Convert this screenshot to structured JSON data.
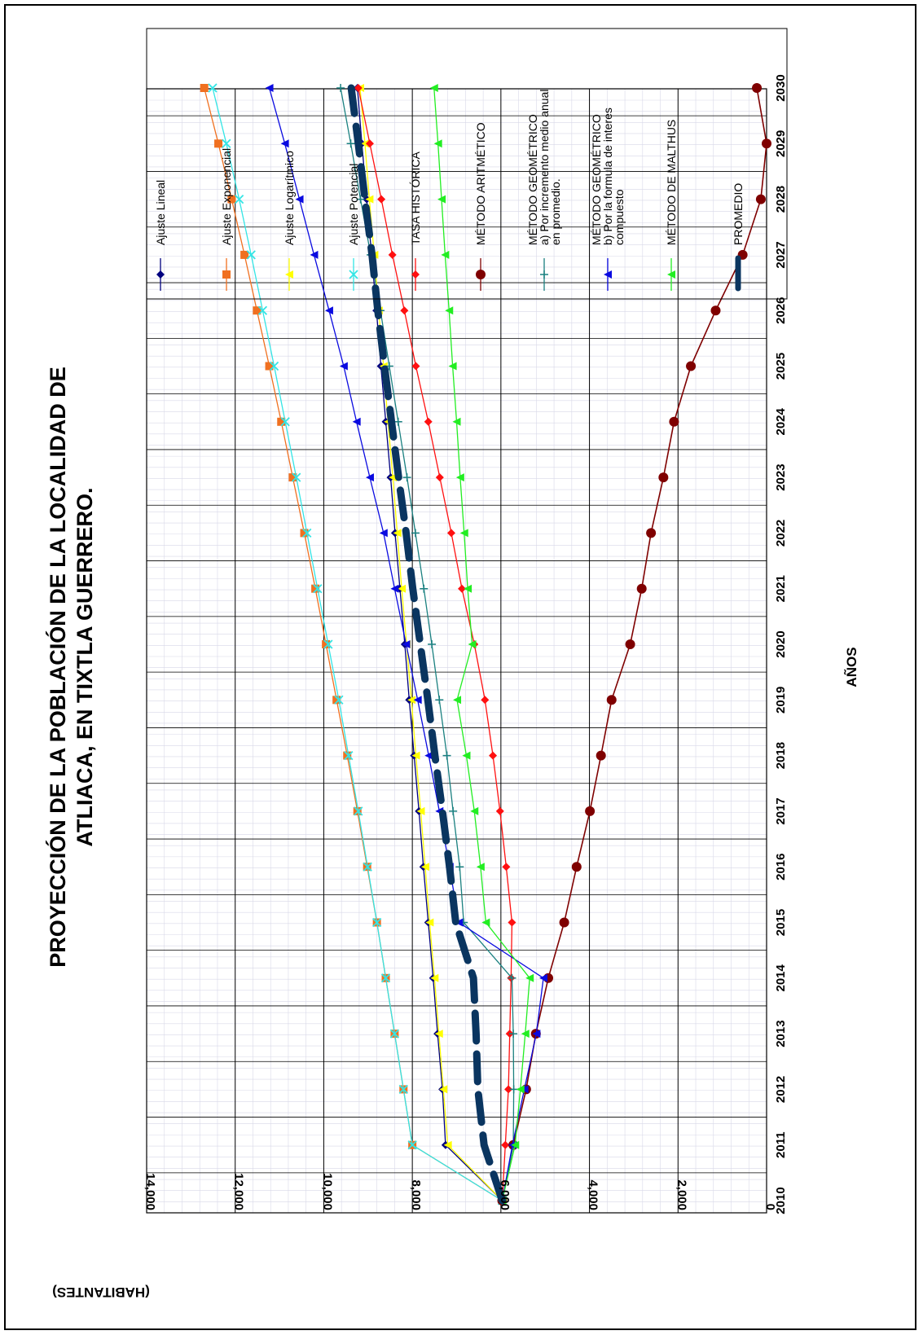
{
  "chart_data": {
    "type": "line",
    "title_lines": [
      "PROYECCIÓN DE LA POBLACIÓN DE LA LOCALIDAD DE",
      "ATLIACA, EN TIXTLA GUERRERO."
    ],
    "xlabel": "AÑOS",
    "ylabel": "(HABITANTES)",
    "categories": [
      "2010",
      "2011",
      "2012",
      "2013",
      "2014",
      "2015",
      "2016",
      "2017",
      "2018",
      "2019",
      "2020",
      "2021",
      "2022",
      "2023",
      "2024",
      "2025",
      "2026",
      "2027",
      "2028",
      "2029",
      "2030"
    ],
    "y_ticks": [
      "0",
      "2,000",
      "4,000",
      "6,000",
      "8,000",
      "10,000",
      "12,000",
      "14,000"
    ],
    "ylim": [
      0,
      14000
    ],
    "grid": true,
    "orientation": "rotated 90° counter-clockwise",
    "legend_position": "right",
    "series": [
      {
        "key": "lineal",
        "name": "Ajuste Lineal",
        "color": "#00007F",
        "marker": "diamond",
        "width": 1.3,
        "values": [
          5970,
          7250,
          7320,
          7430,
          7530,
          7640,
          7750,
          7850,
          7960,
          8070,
          8170,
          8280,
          8390,
          8490,
          8600,
          8710,
          8810,
          8920,
          9030,
          9140,
          9240
        ]
      },
      {
        "key": "exponencial",
        "name": "Ajuste Exponencial",
        "color": "#F07020",
        "marker": "square",
        "width": 1.3,
        "values": [
          5970,
          8000,
          8200,
          8400,
          8600,
          8800,
          9020,
          9240,
          9470,
          9710,
          9950,
          10190,
          10440,
          10700,
          10960,
          11230,
          11510,
          11790,
          12080,
          12380,
          12700
        ]
      },
      {
        "key": "logaritmico",
        "name": "Ajuste Logarítmico",
        "color": "#FFFF00",
        "marker": "triangle",
        "width": 1.3,
        "values": [
          5970,
          7200,
          7300,
          7400,
          7500,
          7610,
          7710,
          7810,
          7920,
          8020,
          8130,
          8240,
          8340,
          8440,
          8550,
          8650,
          8760,
          8860,
          8970,
          9070,
          9180
        ]
      },
      {
        "key": "potencial",
        "name": "Ajuste Potencial",
        "color": "#33E5E5",
        "marker": "x",
        "width": 1.3,
        "values": [
          5970,
          8000,
          8200,
          8400,
          8600,
          8800,
          9010,
          9220,
          9440,
          9660,
          9900,
          10140,
          10380,
          10620,
          10870,
          11120,
          11380,
          11640,
          11910,
          12200,
          12510
        ]
      },
      {
        "key": "tasa",
        "name": "TASA HISTÓRICA",
        "color": "#FF1010",
        "marker": "diamond",
        "width": 1.3,
        "values": [
          5970,
          5900,
          5830,
          5800,
          5770,
          5750,
          5880,
          6020,
          6180,
          6360,
          6600,
          6880,
          7120,
          7380,
          7640,
          7920,
          8180,
          8450,
          8700,
          8960,
          9220
        ]
      },
      {
        "key": "aritmetico",
        "name": "MÉTODO ARITMÉTICO",
        "color": "#7F0000",
        "marker": "circle",
        "width": 1.6,
        "values": [
          5970,
          5720,
          5430,
          5210,
          4930,
          4570,
          4290,
          3990,
          3740,
          3500,
          3080,
          2820,
          2610,
          2330,
          2090,
          1710,
          1150,
          540,
          130,
          0,
          220
        ]
      },
      {
        "key": "geo_a",
        "name": "MÉTODO GEOMÉTRICO",
        "name_line2": "a) Por incremento medio anual",
        "name_line3": "en promedio.",
        "color": "#1A8080",
        "marker": "plus",
        "width": 1.3,
        "values": [
          5970,
          5720,
          5710,
          5720,
          5750,
          6840,
          6930,
          7080,
          7220,
          7390,
          7560,
          7740,
          7930,
          8120,
          8320,
          8520,
          8720,
          8940,
          9170,
          9390,
          9620
        ]
      },
      {
        "key": "geo_b",
        "name": "MÉTODO GEOMÉTRICO",
        "name_line2": "b) Por la formula de interes",
        "name_line3": "compuesto",
        "color": "#0A0AE0",
        "marker": "triangle",
        "width": 1.3,
        "values": [
          5970,
          5740,
          5470,
          5200,
          5040,
          6950,
          7160,
          7390,
          7630,
          7880,
          8140,
          8400,
          8650,
          8960,
          9260,
          9550,
          9880,
          10220,
          10550,
          10880,
          11230
        ]
      },
      {
        "key": "malthus",
        "name": "MÉTODO DE MALTHUS",
        "color": "#22EE22",
        "marker": "triangle",
        "width": 1.3,
        "values": [
          5970,
          5680,
          5560,
          5450,
          5350,
          6340,
          6460,
          6600,
          6780,
          6990,
          6650,
          6750,
          6830,
          6920,
          7000,
          7090,
          7170,
          7260,
          7340,
          7420,
          7510
        ]
      },
      {
        "key": "promedio",
        "name": "PROMEDIO",
        "color": "#0A3560",
        "marker": "none",
        "width": 9,
        "dashed": true,
        "values": [
          5970,
          6380,
          6520,
          6560,
          6620,
          7020,
          7160,
          7320,
          7490,
          7650,
          7820,
          7990,
          8140,
          8310,
          8470,
          8630,
          8780,
          8910,
          9070,
          9220,
          9380
        ]
      }
    ]
  }
}
